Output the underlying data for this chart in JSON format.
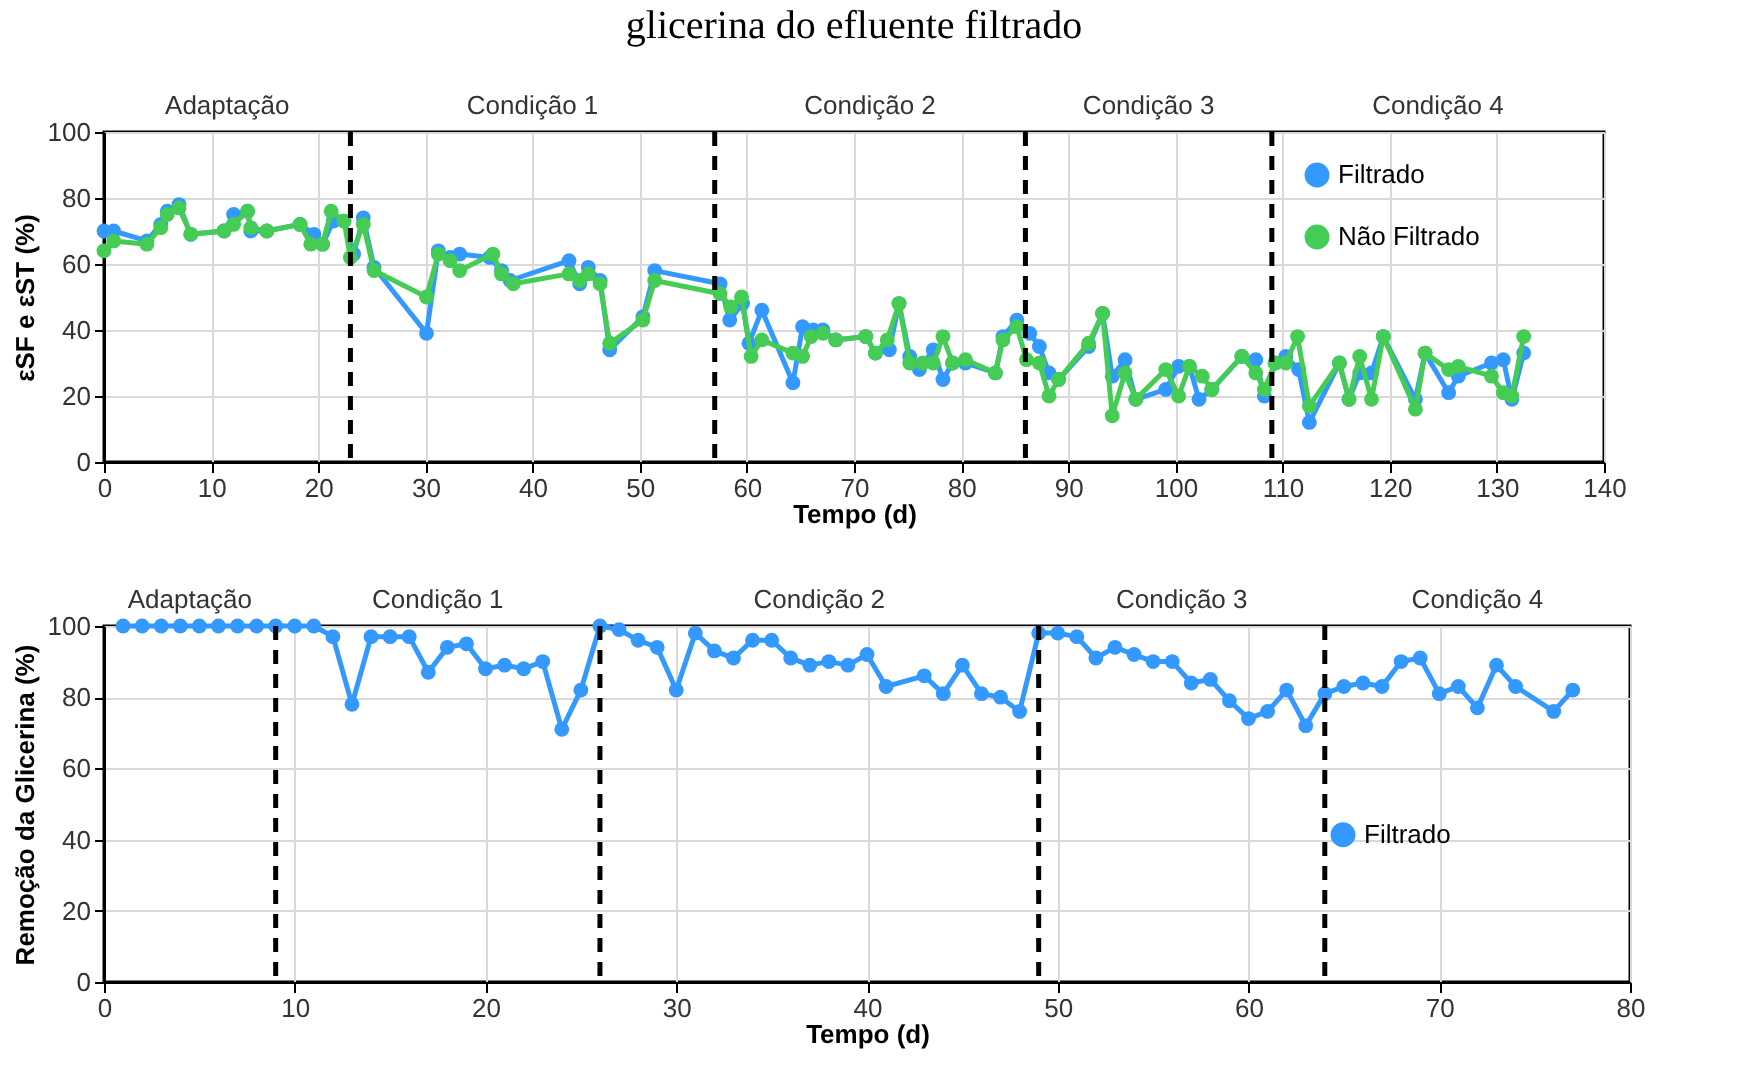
{
  "chart_data": [
    {
      "type": "line",
      "title": "glicerina do efluente filtrado",
      "xlabel": "Tempo (d)",
      "ylabel": "εSF e εST (%)",
      "xlim": [
        0,
        140
      ],
      "xticks": [
        0,
        10,
        20,
        30,
        40,
        50,
        60,
        70,
        80,
        90,
        100,
        110,
        120,
        130,
        140
      ],
      "ylim": [
        0,
        100
      ],
      "yticks": [
        0,
        20,
        40,
        60,
        80,
        100
      ],
      "grid": true,
      "legend": "top right",
      "marker": "circle",
      "line_style": "solid",
      "annotations": [
        "Adaptação",
        "Condição 1",
        "Condição 2",
        "Condição 3",
        "Condição 4"
      ],
      "ref_lines": [
        {
          "axis": "x",
          "value": 23,
          "color": "#000000",
          "line_style": "dashed"
        },
        {
          "axis": "x",
          "value": 57,
          "color": "#000000",
          "line_style": "dashed"
        },
        {
          "axis": "x",
          "value": 86,
          "color": "#000000",
          "line_style": "dashed"
        },
        {
          "axis": "x",
          "value": 109,
          "color": "#000000",
          "line_style": "dashed"
        }
      ],
      "series": [
        {
          "name": "Filtrado",
          "color": "#3399ff",
          "x": [
            0,
            0.9,
            4,
            5.3,
            5.9,
            7,
            8.1,
            11.2,
            12.1,
            13.4,
            13.7,
            15.2,
            18.3,
            19.6,
            20.4,
            21.4,
            22.4,
            23.3,
            24.2,
            25.2,
            30.1,
            31.2,
            32.3,
            33.2,
            36,
            37.1,
            37.9,
            43.4,
            44.4,
            45.2,
            46.3,
            47.2,
            50.3,
            51.4,
            57.5,
            58.4,
            59.6,
            60.2,
            61.4,
            64.3,
            65.2,
            66.2,
            67.1,
            68.3,
            71.1,
            72,
            73.3,
            74.2,
            75.2,
            76.1,
            77.4,
            78.3,
            79.2,
            80.4,
            83.2,
            83.9,
            85.2,
            86.4,
            87.3,
            88.2,
            89.1,
            91.9,
            93.2,
            94.1,
            95.3,
            96.3,
            99.1,
            100.3,
            101.3,
            102.2,
            103.4,
            106.2,
            107.5,
            108.3,
            109.3,
            110.3,
            111.5,
            112.5,
            115.3,
            116.2,
            117.2,
            118.3,
            119.4,
            122.4,
            123.3,
            125.5,
            126.4,
            129.5,
            130.6,
            131.4,
            132.5
          ],
          "values": [
            70,
            70,
            67,
            72,
            76,
            78,
            69,
            70,
            75,
            76,
            70,
            70,
            72,
            69,
            66,
            73,
            73,
            63,
            74,
            59,
            39,
            64,
            62,
            63,
            62,
            58,
            55,
            61,
            54,
            59,
            55,
            34,
            44,
            58,
            54,
            43,
            48,
            36,
            46,
            24,
            41,
            40,
            40,
            37,
            38,
            33,
            34,
            48,
            32,
            28,
            34,
            25,
            30,
            30,
            27,
            38,
            43,
            39,
            35,
            27,
            25,
            35,
            45,
            26,
            31,
            19,
            22,
            29,
            29,
            19,
            22,
            32,
            31,
            20,
            30,
            32,
            28,
            12,
            30,
            19,
            27,
            27,
            38,
            19,
            33,
            21,
            26,
            30,
            31,
            19,
            33
          ]
        },
        {
          "name": "Não Filtrado",
          "color": "#44cc55",
          "x": [
            0,
            0.9,
            4,
            5.3,
            5.9,
            7,
            8.1,
            11.2,
            12.1,
            13.4,
            13.7,
            15.2,
            18.3,
            19.3,
            20.4,
            21.2,
            22.4,
            23,
            24.2,
            25.2,
            30.1,
            31.2,
            32.3,
            33.2,
            36.3,
            37.1,
            38.2,
            43.4,
            44.4,
            45.2,
            46.3,
            47.2,
            50.3,
            51.4,
            57.5,
            58.5,
            59.5,
            60.4,
            61.4,
            64.3,
            65.2,
            66,
            67.1,
            68.3,
            71.1,
            72,
            73.1,
            74.2,
            75.2,
            76.4,
            77.4,
            78.3,
            79.2,
            80.4,
            83.2,
            83.9,
            85.2,
            86.1,
            87.3,
            88.2,
            89.1,
            91.9,
            93.2,
            94.1,
            95.3,
            96.3,
            99.1,
            100.3,
            101.3,
            102.5,
            103.4,
            106.2,
            107.5,
            108.3,
            109.3,
            110.3,
            111.4,
            112.5,
            115.3,
            116.2,
            117.2,
            118.3,
            119.4,
            122.4,
            123.3,
            125.5,
            126.4,
            129.5,
            130.6,
            131.4,
            132.5
          ],
          "values": [
            64,
            67,
            66,
            71,
            75,
            77,
            69,
            70,
            72,
            76,
            71,
            70,
            72,
            66,
            66,
            76,
            73,
            62,
            72,
            58,
            50,
            63,
            61,
            58,
            63,
            57,
            54,
            57,
            55,
            57,
            54,
            36,
            43,
            55,
            51,
            47,
            50,
            32,
            37,
            33,
            32,
            38,
            39,
            37,
            38,
            33,
            37,
            48,
            30,
            30,
            30,
            38,
            30,
            31,
            27,
            37,
            41,
            31,
            30,
            20,
            25,
            36,
            45,
            14,
            27,
            19,
            28,
            20,
            29,
            26,
            22,
            32,
            27,
            22,
            30,
            30,
            38,
            17,
            30,
            19,
            32,
            19,
            38,
            16,
            33,
            28,
            29,
            26,
            21,
            20,
            38
          ]
        }
      ]
    },
    {
      "type": "line",
      "xlabel": "Tempo (d)",
      "ylabel": "Remoção da Glicerina (%)",
      "xlim": [
        0,
        80
      ],
      "xticks": [
        0,
        10,
        20,
        30,
        40,
        50,
        60,
        70,
        80
      ],
      "ylim": [
        0,
        100
      ],
      "yticks": [
        0,
        20,
        40,
        60,
        80,
        100
      ],
      "grid": true,
      "legend": "right",
      "marker": "circle",
      "line_style": "solid",
      "annotations": [
        "Adaptação",
        "Condição 1",
        "Condição 2",
        "Condição 3",
        "Condição 4"
      ],
      "ref_lines": [
        {
          "axis": "x",
          "value": 9,
          "color": "#000000",
          "line_style": "dashed"
        },
        {
          "axis": "x",
          "value": 26,
          "color": "#000000",
          "line_style": "dashed"
        },
        {
          "axis": "x",
          "value": 49,
          "color": "#000000",
          "line_style": "dashed"
        },
        {
          "axis": "x",
          "value": 64,
          "color": "#000000",
          "line_style": "dashed"
        }
      ],
      "series": [
        {
          "name": "Filtrado",
          "color": "#3399ff",
          "x": [
            1,
            2,
            3,
            4,
            5,
            6,
            7,
            8,
            9,
            10,
            11,
            12,
            13,
            14,
            15,
            16,
            17,
            18,
            19,
            20,
            21,
            22,
            23,
            24,
            25,
            26,
            27,
            28,
            29,
            30,
            31,
            32,
            33,
            34,
            35,
            36,
            37,
            38,
            39,
            40,
            41,
            43,
            44,
            45,
            46,
            47,
            48,
            49,
            50,
            51,
            52,
            53,
            54,
            55,
            56,
            57,
            58,
            59,
            60,
            61,
            62,
            63,
            64,
            65,
            66,
            67,
            68,
            69,
            70,
            71,
            72,
            73,
            74,
            76,
            77
          ],
          "values": [
            100,
            100,
            100,
            100,
            100,
            100,
            100,
            100,
            100,
            100,
            100,
            97,
            78,
            97,
            97,
            97,
            87,
            94,
            95,
            88,
            89,
            88,
            90,
            71,
            82,
            100,
            99,
            96,
            94,
            82,
            98,
            93,
            91,
            96,
            96,
            91,
            89,
            90,
            89,
            92,
            83,
            86,
            81,
            89,
            81,
            80,
            76,
            98,
            98,
            97,
            91,
            94,
            92,
            90,
            90,
            84,
            85,
            79,
            74,
            76,
            82,
            72,
            81,
            83,
            84,
            83,
            90,
            91,
            81,
            83,
            77,
            89,
            83,
            76,
            82
          ]
        }
      ]
    }
  ]
}
